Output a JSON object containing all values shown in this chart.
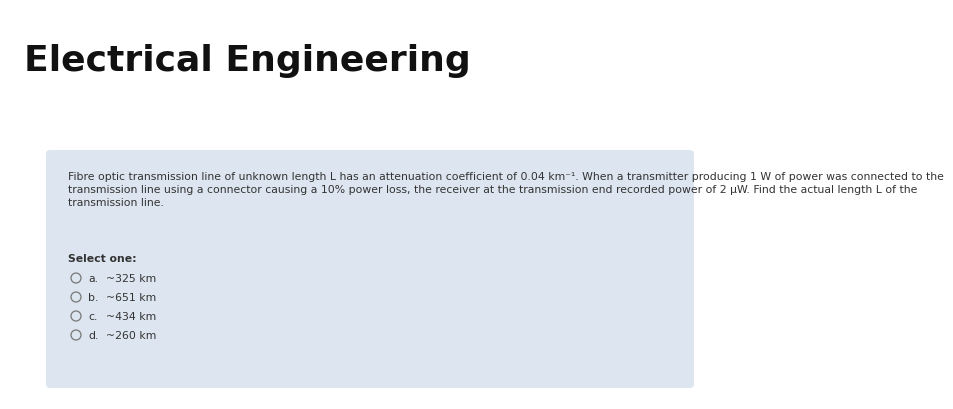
{
  "title": "Electrical Engineering",
  "title_fontsize": 26,
  "title_fontweight": "bold",
  "title_color": "#111111",
  "background_color": "#ffffff",
  "card_background": "#dde6f0",
  "question_line1": "Fibre optic transmission line of unknown length L has an attenuation coefficient of 0.04 km⁻¹. When a transmitter producing 1 W of power was connected to the",
  "question_line2": "transmission line using a connector causing a 10% power loss, the receiver at the transmission end recorded power of 2 μW. Find the actual length L of the",
  "question_line3": "transmission line.",
  "question_fontsize": 7.8,
  "select_one_text": "Select one:",
  "options": [
    {
      "label": "a.",
      "text": "~325 km"
    },
    {
      "label": "b.",
      "text": "~651 km"
    },
    {
      "label": "c.",
      "text": "~434 km"
    },
    {
      "label": "d.",
      "text": "~260 km"
    }
  ],
  "option_fontsize": 7.8,
  "circle_color": "#777777",
  "text_color": "#333333",
  "select_fontsize": 7.8,
  "select_fontweight": "bold"
}
